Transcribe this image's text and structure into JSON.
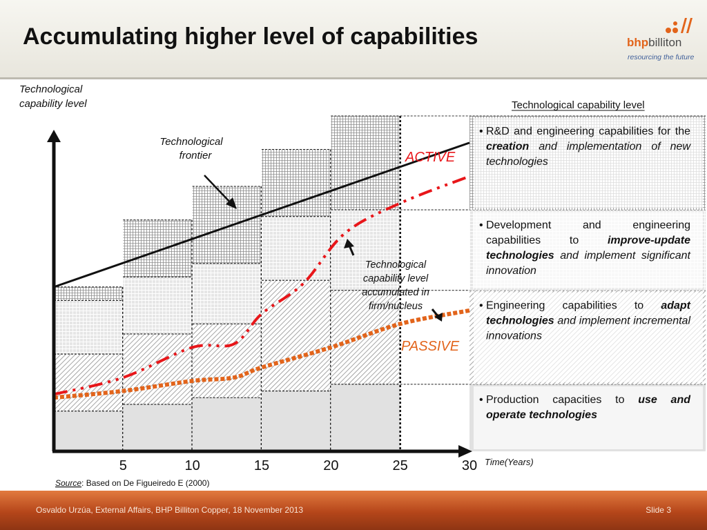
{
  "slide": {
    "title": "Accumulating higher level of capabilities",
    "logo": {
      "name_part1": "bhp",
      "name_part2": "billiton",
      "tagline": "resourcing the future"
    },
    "footer": {
      "text": "Osvaldo Urzúa, External Affairs, BHP Billiton Copper,  18 November 2013",
      "slide_number": "Slide 3"
    },
    "source": {
      "label": "Source",
      "text": ": Based on De Figueiredo E (2000)"
    }
  },
  "chart_data": {
    "type": "line",
    "ylabel": [
      "Technological",
      "capability level"
    ],
    "xlabel": "Time(Years)",
    "x_ticks": [
      "5",
      "10",
      "15",
      "20",
      "25",
      "30"
    ],
    "xlim": [
      0,
      30
    ],
    "ylim": [
      0,
      100
    ],
    "legend_title": "Technological capability level",
    "series": [
      {
        "name": "Technological frontier",
        "values": [
          [
            0,
            49
          ],
          [
            30,
            92
          ]
        ]
      },
      {
        "name": "ACTIVE",
        "values": [
          [
            0,
            17
          ],
          [
            5,
            22
          ],
          [
            10,
            31
          ],
          [
            13,
            32
          ],
          [
            15,
            41
          ],
          [
            18,
            50
          ],
          [
            21,
            65
          ],
          [
            25,
            74
          ],
          [
            30,
            82
          ]
        ]
      },
      {
        "name": "PASSIVE",
        "values": [
          [
            0,
            16
          ],
          [
            5,
            18
          ],
          [
            10,
            21
          ],
          [
            13,
            22
          ],
          [
            15,
            25
          ],
          [
            20,
            31
          ],
          [
            25,
            38
          ],
          [
            30,
            42
          ]
        ]
      }
    ],
    "stages": [
      {
        "x_end": 5,
        "tops": [
          12,
          29,
          45,
          49
        ]
      },
      {
        "x_end": 10,
        "tops": [
          14,
          35,
          52,
          69
        ]
      },
      {
        "x_end": 15,
        "tops": [
          16,
          38,
          56,
          79
        ]
      },
      {
        "x_end": 20,
        "tops": [
          18,
          51,
          70,
          90
        ]
      },
      {
        "x_end": 25,
        "tops": [
          20,
          48,
          72,
          100
        ]
      }
    ],
    "levels": [
      {
        "label": "Production capacities to use and operate technologies",
        "segments": [
          {
            "t": "Production capacities to "
          },
          {
            "t": "use and operate technologies",
            "b": 1,
            "i": 1
          }
        ]
      },
      {
        "label": "Engineering capabilities to adapt technologies and implement incremental innovations",
        "segments": [
          {
            "t": "Engineering capabilities to "
          },
          {
            "t": "adapt technologies",
            "b": 1,
            "i": 1
          },
          {
            "t": " and implement incremental innovations",
            "i": 1
          }
        ]
      },
      {
        "label": "Development and engineering capabilities to improve-update technologies and implement significant innovation",
        "segments": [
          {
            "t": "Development and engineering capabilities to "
          },
          {
            "t": "improve-update technologies",
            "b": 1,
            "i": 1
          },
          {
            "t": " and implement significant innovation",
            "i": 1
          }
        ]
      },
      {
        "label": "R&D and engineering capabilities for the creation and implementation of new technologies",
        "segments": [
          {
            "t": "R&D and engineering capabilities for the "
          },
          {
            "t": "creation",
            "b": 1,
            "i": 1
          },
          {
            "t": " and implementation of new technologies",
            "i": 1
          }
        ]
      }
    ],
    "annotations": {
      "frontier": [
        "Technological",
        "frontier"
      ],
      "accumulated": [
        "Technological",
        "capability level",
        "accumulated in",
        "firm/nucleus"
      ],
      "active": "ACTIVE",
      "passive": "PASSIVE"
    },
    "colors": {
      "active": "#e8161a",
      "passive": "#e2641b",
      "title": "#111111",
      "accent": "#e2641b"
    }
  }
}
